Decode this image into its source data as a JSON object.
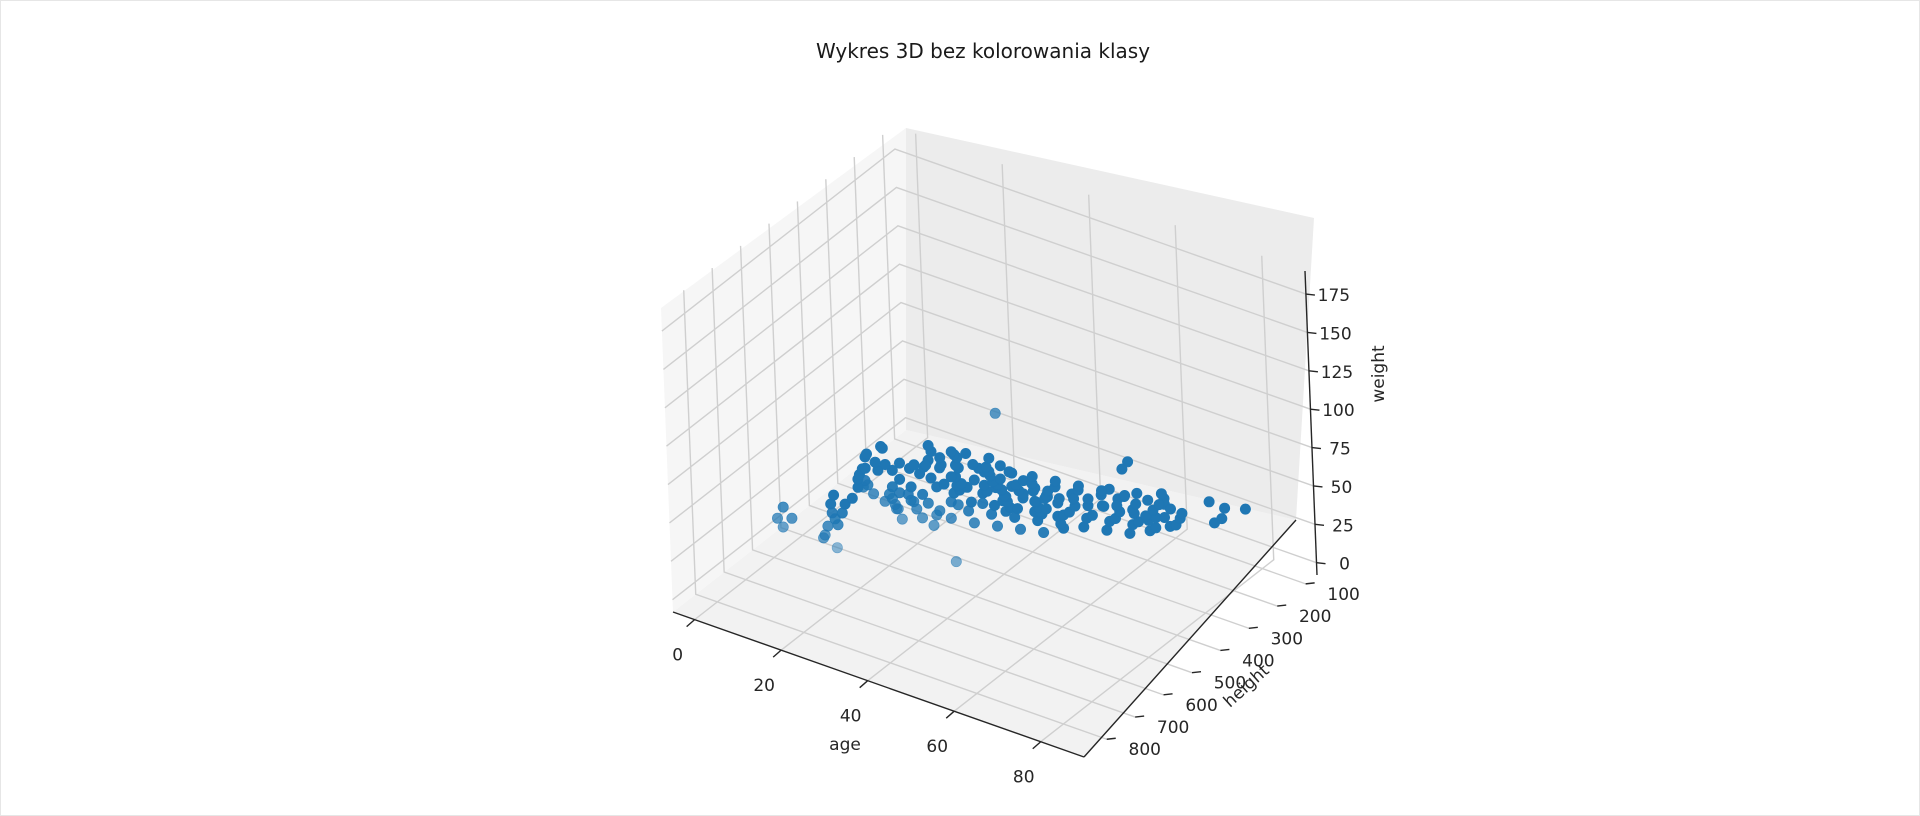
{
  "chart_data": {
    "type": "scatter3d",
    "title": "Wykres 3D bez kolorowania klasy",
    "xlabel": "age",
    "ylabel": "height",
    "zlabel": "weight",
    "xlim": [
      -5,
      90
    ],
    "ylim": [
      60,
      880
    ],
    "zlim": [
      -8,
      190
    ],
    "x_ticks": [
      "0",
      "20",
      "40",
      "60",
      "80"
    ],
    "y_ticks": [
      "100",
      "200",
      "300",
      "400",
      "500",
      "600",
      "700",
      "800"
    ],
    "z_ticks": [
      "0",
      "25",
      "50",
      "75",
      "100",
      "125",
      "150",
      "175"
    ],
    "grid": true,
    "colors": {
      "point": "#1f77b4"
    },
    "series": [
      {
        "points": [
          [
            2,
            300,
            18
          ],
          [
            3,
            320,
            20
          ],
          [
            4,
            280,
            22
          ],
          [
            5,
            350,
            19
          ],
          [
            6,
            330,
            21
          ],
          [
            5,
            360,
            20
          ],
          [
            3,
            260,
            17
          ],
          [
            7,
            400,
            24
          ],
          [
            8,
            420,
            25
          ],
          [
            10,
            450,
            26
          ],
          [
            12,
            500,
            28
          ],
          [
            9,
            520,
            30
          ],
          [
            11,
            560,
            32
          ],
          [
            13,
            540,
            31
          ],
          [
            15,
            580,
            33
          ],
          [
            14,
            600,
            35
          ],
          [
            16,
            620,
            36
          ],
          [
            18,
            640,
            37
          ],
          [
            17,
            660,
            38
          ],
          [
            19,
            700,
            40
          ],
          [
            20,
            720,
            42
          ],
          [
            8,
            700,
            40
          ],
          [
            6,
            650,
            38
          ],
          [
            10,
            680,
            39
          ],
          [
            12,
            740,
            44
          ],
          [
            22,
            380,
            55
          ],
          [
            25,
            650,
            70
          ],
          [
            60,
            700,
            160
          ],
          [
            55,
            780,
            70
          ],
          [
            30,
            820,
            60
          ],
          [
            70,
            400,
            95
          ],
          [
            48,
            100,
            25
          ],
          [
            82,
            250,
            55
          ],
          [
            80,
            150,
            38
          ],
          [
            85,
            330,
            60
          ],
          [
            78,
            380,
            58
          ],
          [
            84,
            290,
            56
          ],
          [
            75,
            200,
            45
          ],
          [
            72,
            310,
            60
          ],
          [
            77,
            330,
            55
          ],
          [
            70,
            280,
            50
          ],
          [
            65,
            300,
            55
          ],
          [
            68,
            260,
            52
          ],
          [
            62,
            350,
            62
          ],
          [
            66,
            380,
            64
          ],
          [
            58,
            420,
            65
          ],
          [
            55,
            460,
            66
          ],
          [
            52,
            500,
            68
          ],
          [
            50,
            540,
            70
          ],
          [
            48,
            580,
            72
          ],
          [
            45,
            620,
            74
          ],
          [
            42,
            600,
            70
          ],
          [
            40,
            560,
            68
          ],
          [
            38,
            520,
            65
          ],
          [
            35,
            480,
            62
          ],
          [
            33,
            440,
            60
          ],
          [
            30,
            400,
            58
          ],
          [
            28,
            380,
            55
          ],
          [
            26,
            360,
            52
          ],
          [
            24,
            420,
            50
          ],
          [
            32,
            600,
            65
          ],
          [
            36,
            640,
            70
          ],
          [
            44,
            680,
            75
          ],
          [
            46,
            660,
            72
          ],
          [
            50,
            640,
            70
          ],
          [
            54,
            620,
            69
          ],
          [
            58,
            600,
            68
          ],
          [
            62,
            580,
            67
          ],
          [
            64,
            540,
            66
          ],
          [
            60,
            500,
            64
          ],
          [
            56,
            480,
            62
          ],
          [
            52,
            460,
            60
          ],
          [
            48,
            440,
            58
          ],
          [
            44,
            420,
            56
          ],
          [
            40,
            400,
            54
          ],
          [
            36,
            380,
            52
          ],
          [
            34,
            360,
            50
          ],
          [
            38,
            340,
            48
          ],
          [
            42,
            320,
            46
          ],
          [
            46,
            300,
            44
          ],
          [
            50,
            280,
            42
          ],
          [
            54,
            260,
            40
          ],
          [
            58,
            240,
            38
          ],
          [
            62,
            220,
            36
          ],
          [
            66,
            240,
            40
          ],
          [
            70,
            260,
            44
          ],
          [
            74,
            280,
            48
          ],
          [
            72,
            340,
            52
          ],
          [
            68,
            360,
            56
          ],
          [
            64,
            400,
            60
          ],
          [
            60,
            440,
            62
          ],
          [
            56,
            520,
            66
          ],
          [
            52,
            560,
            68
          ],
          [
            48,
            500,
            65
          ],
          [
            44,
            520,
            66
          ],
          [
            40,
            540,
            67
          ],
          [
            36,
            560,
            68
          ],
          [
            32,
            520,
            64
          ],
          [
            28,
            500,
            60
          ],
          [
            30,
            560,
            62
          ],
          [
            34,
            580,
            64
          ],
          [
            38,
            620,
            68
          ],
          [
            42,
            640,
            70
          ],
          [
            46,
            600,
            68
          ],
          [
            50,
            580,
            67
          ],
          [
            54,
            560,
            66
          ],
          [
            58,
            540,
            65
          ],
          [
            62,
            520,
            64
          ],
          [
            66,
            500,
            63
          ],
          [
            70,
            480,
            62
          ],
          [
            74,
            460,
            61
          ],
          [
            76,
            420,
            59
          ],
          [
            72,
            400,
            58
          ],
          [
            68,
            420,
            59
          ],
          [
            64,
            440,
            60
          ],
          [
            60,
            460,
            61
          ],
          [
            56,
            440,
            60
          ],
          [
            52,
            420,
            58
          ],
          [
            48,
            400,
            56
          ],
          [
            44,
            380,
            54
          ],
          [
            40,
            360,
            52
          ],
          [
            36,
            340,
            50
          ],
          [
            32,
            320,
            48
          ],
          [
            28,
            340,
            50
          ],
          [
            26,
            400,
            54
          ],
          [
            24,
            460,
            56
          ],
          [
            22,
            480,
            58
          ],
          [
            20,
            500,
            58
          ],
          [
            26,
            540,
            60
          ],
          [
            30,
            600,
            64
          ],
          [
            34,
            620,
            66
          ],
          [
            38,
            660,
            70
          ],
          [
            42,
            700,
            74
          ],
          [
            46,
            720,
            76
          ],
          [
            40,
            740,
            77
          ],
          [
            36,
            700,
            74
          ],
          [
            32,
            680,
            72
          ],
          [
            28,
            660,
            70
          ],
          [
            24,
            620,
            66
          ],
          [
            22,
            600,
            64
          ],
          [
            44,
            560,
            66
          ],
          [
            48,
            540,
            65
          ],
          [
            52,
            520,
            64
          ],
          [
            56,
            500,
            63
          ],
          [
            60,
            480,
            62
          ],
          [
            64,
            460,
            61
          ],
          [
            68,
            440,
            60
          ],
          [
            72,
            420,
            59
          ],
          [
            76,
            400,
            58
          ],
          [
            78,
            360,
            56
          ],
          [
            74,
            340,
            54
          ],
          [
            70,
            320,
            52
          ],
          [
            66,
            320,
            52
          ],
          [
            62,
            300,
            50
          ],
          [
            58,
            320,
            50
          ],
          [
            54,
            340,
            52
          ],
          [
            50,
            360,
            53
          ],
          [
            46,
            380,
            54
          ],
          [
            42,
            440,
            58
          ],
          [
            38,
            460,
            60
          ],
          [
            34,
            480,
            61
          ],
          [
            30,
            460,
            60
          ],
          [
            26,
            440,
            58
          ],
          [
            24,
            400,
            56
          ],
          [
            45,
            470,
            62
          ],
          [
            47,
            490,
            63
          ],
          [
            49,
            510,
            64
          ],
          [
            51,
            530,
            65
          ],
          [
            53,
            470,
            62
          ],
          [
            55,
            490,
            63
          ],
          [
            57,
            510,
            64
          ],
          [
            41,
            470,
            61
          ],
          [
            43,
            490,
            62
          ],
          [
            39,
            500,
            62
          ],
          [
            37,
            490,
            61
          ],
          [
            35,
            520,
            63
          ],
          [
            61,
            410,
            59
          ],
          [
            63,
            390,
            58
          ],
          [
            65,
            370,
            57
          ],
          [
            67,
            390,
            58
          ],
          [
            69,
            370,
            56
          ],
          [
            71,
            360,
            55
          ],
          [
            73,
            380,
            57
          ],
          [
            59,
            380,
            57
          ],
          [
            57,
            400,
            58
          ],
          [
            55,
            420,
            59
          ],
          [
            53,
            440,
            60
          ],
          [
            51,
            400,
            57
          ],
          [
            49,
            420,
            58
          ],
          [
            47,
            440,
            59
          ],
          [
            45,
            420,
            58
          ],
          [
            43,
            460,
            60
          ],
          [
            41,
            440,
            59
          ],
          [
            39,
            420,
            58
          ],
          [
            37,
            410,
            57
          ],
          [
            35,
            400,
            56
          ],
          [
            33,
            390,
            55
          ],
          [
            31,
            420,
            57
          ],
          [
            29,
            440,
            58
          ],
          [
            27,
            470,
            59
          ],
          [
            25,
            490,
            59
          ],
          [
            23,
            520,
            60
          ],
          [
            21,
            540,
            61
          ],
          [
            27,
            580,
            62
          ],
          [
            29,
            620,
            65
          ],
          [
            31,
            640,
            67
          ],
          [
            33,
            660,
            68
          ],
          [
            35,
            680,
            70
          ]
        ]
      }
    ]
  }
}
